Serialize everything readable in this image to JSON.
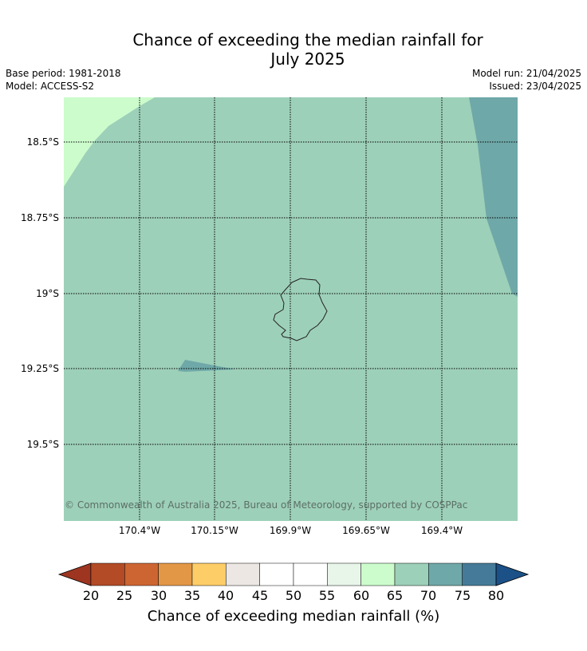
{
  "title_line1": "Chance of exceeding the median rainfall for",
  "title_line2": "July 2025",
  "base_period": "Base period: 1981-2018",
  "model": "Model: ACCESS-S2",
  "model_run": "Model run: 21/04/2025",
  "issued": "Issued: 23/04/2025",
  "lat_labels": [
    "18.5°S",
    "18.75°S",
    "19°S",
    "19.25°S",
    "19.5°S"
  ],
  "lon_labels": [
    "170.4°W",
    "170.15°W",
    "169.9°W",
    "169.65°W",
    "169.4°W"
  ],
  "copyright": "© Commonwealth of Australia 2025, Bureau of Meteorology, supported by COSPPac",
  "colorbar": {
    "ticks": [
      "20",
      "25",
      "30",
      "35",
      "40",
      "45",
      "50",
      "55",
      "60",
      "65",
      "70",
      "75",
      "80"
    ],
    "colors": [
      "#9e3520",
      "#b24b26",
      "#cd6532",
      "#e29747",
      "#fdcd68",
      "#ece7e2",
      "#ffffff",
      "#ffffff",
      "#e8f5e9",
      "#ccfccc",
      "#9dd0b9",
      "#6fa8a8",
      "#457b99",
      "#1b5187"
    ],
    "label": "Chance of exceeding median rainfall (%)"
  },
  "map_colors": {
    "base": "#9dd0b9",
    "light": "#ccfccc",
    "dark": "#6fa8a8"
  }
}
